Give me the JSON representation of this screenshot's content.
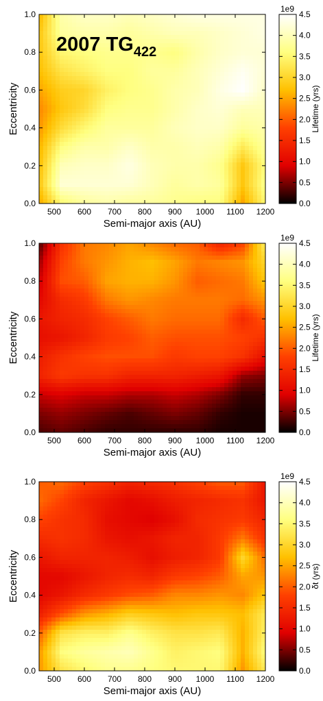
{
  "colors": {
    "colormap": "hot",
    "colormap_stops": [
      "#000000",
      "#e00000",
      "#ff4000",
      "#ffc000",
      "#ffff80",
      "#ffffff"
    ],
    "axes": "#000000",
    "background": "#ffffff"
  },
  "chart_data": [
    {
      "type": "heatmap",
      "annotation": {
        "main": "2007 TG",
        "subscript": "422"
      },
      "xlabel": "Semi-major axis (AU)",
      "ylabel": "Eccentricity",
      "xlim": [
        450,
        1200
      ],
      "ylim": [
        0.0,
        1.0
      ],
      "xticks": [
        500,
        600,
        700,
        800,
        900,
        1000,
        1100,
        1200
      ],
      "yticks": [
        0.0,
        0.2,
        0.4,
        0.6,
        0.8,
        1.0
      ],
      "colorbar": {
        "label": "Lifetime (yrs)",
        "exponent": "1e9",
        "range": [
          0.0,
          4.5
        ],
        "ticks": [
          0.0,
          0.5,
          1.0,
          1.5,
          2.0,
          2.5,
          3.0,
          3.5,
          4.0,
          4.5
        ]
      },
      "grid": {
        "x": [
          450,
          525,
          600,
          675,
          750,
          825,
          900,
          975,
          1050,
          1125,
          1200
        ],
        "y": [
          0.0,
          0.1,
          0.2,
          0.3,
          0.4,
          0.5,
          0.6,
          0.7,
          0.8,
          0.9,
          1.0
        ],
        "z": [
          [
            2.5,
            3.5,
            3.8,
            3.9,
            3.8,
            3.8,
            3.7,
            3.6,
            3.6,
            2.5,
            3.5
          ],
          [
            2.8,
            4.2,
            4.2,
            4.2,
            4.2,
            4.0,
            3.8,
            3.9,
            3.8,
            2.8,
            3.7
          ],
          [
            2.7,
            4.0,
            4.1,
            4.1,
            4.3,
            4.0,
            3.9,
            3.9,
            3.7,
            2.8,
            3.6
          ],
          [
            2.6,
            3.6,
            3.9,
            3.9,
            4.1,
            3.9,
            3.9,
            4.0,
            3.9,
            3.3,
            3.8
          ],
          [
            2.4,
            3.1,
            3.5,
            3.8,
            3.8,
            3.8,
            4.0,
            4.1,
            4.1,
            3.8,
            3.9
          ],
          [
            2.3,
            2.8,
            3.1,
            3.6,
            3.7,
            3.7,
            3.9,
            4.1,
            4.2,
            4.0,
            4.0
          ],
          [
            2.5,
            2.9,
            3.0,
            3.4,
            3.6,
            3.7,
            3.9,
            4.0,
            4.3,
            4.5,
            4.1
          ],
          [
            2.7,
            3.2,
            3.4,
            3.6,
            3.6,
            3.8,
            3.8,
            4.0,
            4.2,
            4.4,
            4.2
          ],
          [
            2.8,
            3.5,
            3.6,
            3.7,
            3.7,
            3.7,
            3.6,
            3.9,
            4.1,
            4.2,
            4.2
          ],
          [
            2.8,
            3.8,
            3.9,
            3.9,
            3.8,
            3.9,
            4.0,
            4.0,
            4.1,
            4.2,
            4.3
          ],
          [
            2.6,
            3.9,
            4.1,
            4.1,
            4.0,
            4.1,
            4.2,
            4.3,
            4.3,
            4.3,
            4.3
          ]
        ]
      }
    },
    {
      "type": "heatmap",
      "xlabel": "Semi-major axis (AU)",
      "ylabel": "Eccentricity",
      "xlim": [
        450,
        1200
      ],
      "ylim": [
        0.0,
        1.0
      ],
      "xticks": [
        500,
        600,
        700,
        800,
        900,
        1000,
        1100,
        1200
      ],
      "yticks": [
        0.0,
        0.2,
        0.4,
        0.6,
        0.8,
        1.0
      ],
      "colorbar": {
        "label": "Lifetime (yrs)",
        "exponent": "1e9",
        "range": [
          0.0,
          4.5
        ],
        "ticks": [
          0.0,
          0.5,
          1.0,
          1.5,
          2.0,
          2.5,
          3.0,
          3.5,
          4.0,
          4.5
        ]
      },
      "grid": {
        "x": [
          450,
          525,
          600,
          675,
          750,
          825,
          900,
          975,
          1050,
          1125,
          1200
        ],
        "y": [
          0.0,
          0.1,
          0.2,
          0.3,
          0.4,
          0.5,
          0.6,
          0.7,
          0.8,
          0.9,
          1.0
        ],
        "z": [
          [
            0.3,
            0.4,
            0.3,
            0.2,
            0.2,
            0.2,
            0.2,
            0.2,
            0.1,
            0.1,
            0.1
          ],
          [
            0.5,
            0.6,
            0.5,
            0.4,
            0.3,
            0.4,
            0.5,
            0.4,
            0.2,
            0.1,
            0.1
          ],
          [
            0.8,
            0.9,
            0.8,
            0.8,
            0.7,
            0.7,
            0.8,
            0.7,
            0.5,
            0.2,
            0.2
          ],
          [
            1.4,
            1.7,
            1.6,
            1.6,
            1.4,
            1.4,
            1.4,
            1.3,
            1.2,
            0.6,
            0.5
          ],
          [
            1.3,
            1.6,
            1.8,
            1.9,
            1.9,
            1.9,
            1.7,
            1.8,
            1.8,
            1.6,
            1.1
          ],
          [
            1.1,
            1.2,
            1.4,
            1.7,
            1.8,
            2.0,
            1.9,
            1.9,
            1.9,
            1.8,
            1.6
          ],
          [
            1.2,
            1.4,
            1.5,
            1.8,
            2.0,
            2.2,
            2.1,
            2.1,
            2.1,
            1.5,
            2.0
          ],
          [
            1.0,
            1.5,
            1.7,
            2.2,
            2.4,
            2.3,
            2.2,
            2.2,
            2.2,
            2.1,
            2.4
          ],
          [
            0.8,
            1.9,
            2.0,
            2.5,
            2.6,
            2.6,
            2.4,
            2.0,
            2.1,
            2.2,
            2.8
          ],
          [
            0.6,
            1.8,
            2.2,
            2.4,
            2.6,
            2.7,
            2.5,
            2.2,
            2.3,
            2.4,
            3.0
          ],
          [
            0.3,
            1.6,
            2.2,
            2.3,
            2.5,
            2.3,
            2.1,
            2.0,
            1.4,
            1.8,
            3.4
          ]
        ]
      }
    },
    {
      "type": "heatmap",
      "xlabel": "Semi-major axis (AU)",
      "ylabel": "Eccentricity",
      "xlim": [
        450,
        1200
      ],
      "ylim": [
        0.0,
        1.0
      ],
      "xticks": [
        500,
        600,
        700,
        800,
        900,
        1000,
        1100,
        1200
      ],
      "yticks": [
        0.0,
        0.2,
        0.4,
        0.6,
        0.8,
        1.0
      ],
      "colorbar": {
        "label": "δt (yrs)",
        "exponent": "1e9",
        "range": [
          0.0,
          4.5
        ],
        "ticks": [
          0.0,
          0.5,
          1.0,
          1.5,
          2.0,
          2.5,
          3.0,
          3.5,
          4.0,
          4.5
        ]
      },
      "grid": {
        "x": [
          450,
          525,
          600,
          675,
          750,
          825,
          900,
          975,
          1050,
          1125,
          1200
        ],
        "y": [
          0.0,
          0.1,
          0.2,
          0.3,
          0.4,
          0.5,
          0.6,
          0.7,
          0.8,
          0.9,
          1.0
        ],
        "z": [
          [
            2.4,
            3.2,
            3.5,
            3.7,
            3.7,
            3.6,
            3.5,
            3.5,
            3.5,
            2.4,
            3.3
          ],
          [
            2.4,
            3.6,
            3.8,
            3.9,
            4.0,
            3.7,
            3.4,
            3.5,
            3.6,
            2.6,
            3.6
          ],
          [
            2.0,
            3.2,
            3.4,
            3.4,
            3.7,
            3.4,
            3.2,
            3.2,
            3.3,
            2.6,
            3.4
          ],
          [
            1.3,
            1.9,
            2.4,
            2.6,
            2.9,
            2.8,
            2.7,
            2.8,
            2.8,
            2.7,
            3.3
          ],
          [
            1.0,
            1.2,
            1.5,
            1.7,
            1.9,
            2.0,
            2.3,
            2.3,
            2.4,
            2.3,
            2.8
          ],
          [
            1.0,
            1.0,
            1.2,
            1.4,
            1.5,
            1.4,
            1.7,
            1.8,
            2.0,
            2.5,
            2.4
          ],
          [
            1.2,
            1.4,
            1.4,
            1.4,
            1.3,
            1.1,
            1.3,
            1.4,
            1.7,
            3.0,
            2.1
          ],
          [
            1.5,
            1.6,
            1.5,
            1.2,
            1.1,
            1.2,
            1.4,
            1.4,
            1.7,
            2.2,
            1.6
          ],
          [
            1.8,
            1.6,
            1.5,
            1.1,
            1.0,
            0.9,
            1.1,
            1.5,
            1.6,
            1.7,
            1.4
          ],
          [
            2.1,
            1.8,
            1.4,
            1.2,
            1.0,
            1.1,
            1.3,
            1.4,
            1.5,
            1.6,
            1.2
          ],
          [
            2.0,
            2.1,
            1.8,
            1.6,
            1.4,
            1.5,
            1.6,
            1.8,
            2.0,
            2.0,
            1.2
          ]
        ]
      }
    }
  ]
}
